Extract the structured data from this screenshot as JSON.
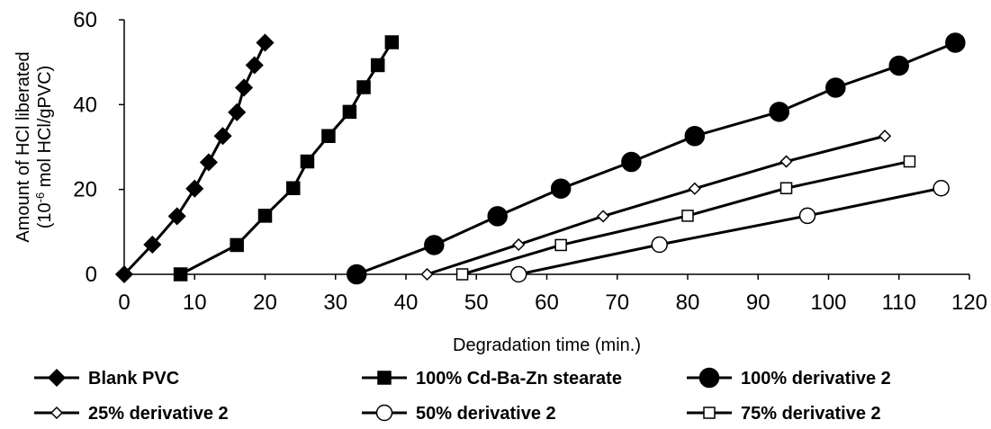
{
  "chart_data": {
    "type": "line",
    "title": "",
    "xlabel": "Degradation time (min.)",
    "ylabel_line1": "Amount of HCl liberated",
    "ylabel_line2_prefix": "(10",
    "ylabel_line2_exponent": "-6",
    "ylabel_line2_suffix": " mol HCl/gPVC)",
    "xlim": [
      0,
      120
    ],
    "ylim": [
      0,
      60
    ],
    "x_ticks": [
      "0",
      "10",
      "20",
      "30",
      "40",
      "50",
      "60",
      "70",
      "80",
      "90",
      "100",
      "110",
      "120"
    ],
    "y_ticks": [
      "0",
      "20",
      "40",
      "60"
    ],
    "grid": false,
    "legend_position": "bottom",
    "series": [
      {
        "name": "Blank PVC",
        "marker": "diamond-filled",
        "x": [
          0,
          4,
          7.5,
          10,
          12,
          14,
          16,
          17,
          18.5,
          20
        ],
        "y": [
          0,
          7,
          13.7,
          20.2,
          26.4,
          32.6,
          38.2,
          44,
          49.3,
          54.6
        ]
      },
      {
        "name": "100% Cd-Ba-Zn stearate",
        "marker": "square-filled",
        "x": [
          8,
          16,
          20,
          24,
          26,
          29,
          32,
          34,
          36,
          38
        ],
        "y": [
          0,
          6.9,
          13.8,
          20.3,
          26.6,
          32.6,
          38.3,
          44.1,
          49.3,
          54.7
        ]
      },
      {
        "name": "100% derivative 2",
        "marker": "circle-filled",
        "x": [
          33,
          44,
          53,
          62,
          72,
          81,
          93,
          101,
          110,
          118
        ],
        "y": [
          0,
          6.9,
          13.7,
          20.2,
          26.5,
          32.6,
          38.3,
          44,
          49.2,
          54.6
        ]
      },
      {
        "name": "25% derivative 2",
        "marker": "diamond-open",
        "x": [
          43,
          56,
          68,
          81,
          94,
          108
        ],
        "y": [
          0,
          7,
          13.7,
          20.2,
          26.6,
          32.6
        ]
      },
      {
        "name": "50% derivative 2",
        "marker": "circle-open",
        "x": [
          56,
          76,
          97,
          116
        ],
        "y": [
          0,
          7,
          13.8,
          20.3
        ]
      },
      {
        "name": "75% derivative 2",
        "marker": "square-open",
        "x": [
          48,
          62,
          80,
          94,
          111.5
        ],
        "y": [
          0,
          6.9,
          13.8,
          20.3,
          26.6
        ]
      }
    ]
  }
}
